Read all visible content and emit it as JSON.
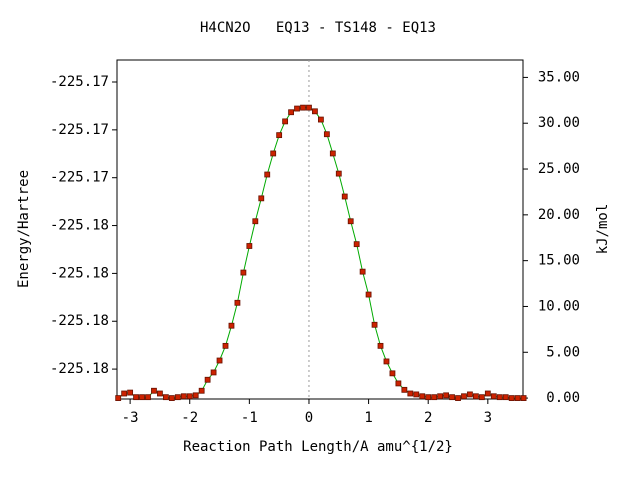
{
  "chart_data": {
    "type": "line",
    "title": "H4CN2O   EQ13 - TS148 - EQ13",
    "xlabel": "Reaction Path Length/A amu^{1/2}",
    "ylabel": "Energy/Hartree",
    "y2label": "kJ/mol",
    "xlim": [
      -3.22,
      3.59
    ],
    "xticks": [
      -3,
      -2,
      -1,
      0,
      1,
      2,
      3
    ],
    "ylim": [
      -225.18325,
      -225.16908
    ],
    "yticks": [
      {
        "value": -225.182,
        "label": "-225.18"
      },
      {
        "value": -225.18,
        "label": "-225.18"
      },
      {
        "value": -225.178,
        "label": "-225.18"
      },
      {
        "value": -225.176,
        "label": "-225.18"
      },
      {
        "value": -225.174,
        "label": "-225.17"
      },
      {
        "value": -225.172,
        "label": "-225.17"
      },
      {
        "value": -225.17,
        "label": "-225.17"
      }
    ],
    "y2lim": [
      -0.1,
      36.9
    ],
    "y2ticks": [
      {
        "value": 0,
        "label": "0.00"
      },
      {
        "value": 5,
        "label": "5.00"
      },
      {
        "value": 10,
        "label": "10.00"
      },
      {
        "value": 15,
        "label": "15.00"
      },
      {
        "value": 20,
        "label": "20.00"
      },
      {
        "value": 25,
        "label": "25.00"
      },
      {
        "value": 30,
        "label": "30.00"
      },
      {
        "value": 35,
        "label": "35.00"
      }
    ],
    "vline_x": 0,
    "x": [
      -3.2,
      -3.1,
      -3.0,
      -2.9,
      -2.8,
      -2.7,
      -2.6,
      -2.5,
      -2.4,
      -2.3,
      -2.2,
      -2.1,
      -2.0,
      -1.9,
      -1.8,
      -1.7,
      -1.6,
      -1.5,
      -1.4,
      -1.3,
      -1.2,
      -1.1,
      -1.0,
      -0.9,
      -0.8,
      -0.7,
      -0.6,
      -0.5,
      -0.4,
      -0.3,
      -0.2,
      -0.1,
      0,
      0.1,
      0.2,
      0.3,
      0.4,
      0.5,
      0.6,
      0.7,
      0.8,
      0.9,
      1.0,
      1.1,
      1.2,
      1.3,
      1.4,
      1.5,
      1.6,
      1.7,
      1.8,
      1.9,
      2.0,
      2.1,
      2.2,
      2.3,
      2.4,
      2.5,
      2.6,
      2.7,
      2.8,
      2.9,
      3.0,
      3.1,
      3.2,
      3.3,
      3.4,
      3.5,
      3.6
    ],
    "series": [
      {
        "color": "#cc2200",
        "line_color": "#00aa00",
        "axis": "y2",
        "values": [
          0,
          0.5,
          0.6,
          0.1,
          0.1,
          0.1,
          0.8,
          0.5,
          0.1,
          0,
          0.1,
          0.2,
          0.2,
          0.3,
          0.8,
          2.0,
          2.8,
          4.1,
          5.7,
          7.9,
          10.4,
          13.7,
          16.6,
          19.3,
          21.8,
          24.4,
          26.7,
          28.7,
          30.2,
          31.2,
          31.6,
          31.7,
          31.7,
          31.3,
          30.4,
          28.8,
          26.7,
          24.5,
          22.0,
          19.3,
          16.8,
          13.8,
          11.3,
          8.0,
          5.7,
          4.0,
          2.7,
          1.6,
          0.9,
          0.5,
          0.4,
          0.2,
          0.1,
          0.1,
          0.2,
          0.3,
          0.1,
          0,
          0.2,
          0.4,
          0.2,
          0.1,
          0.5,
          0.2,
          0.1,
          0.1,
          0,
          0,
          0
        ]
      }
    ]
  }
}
